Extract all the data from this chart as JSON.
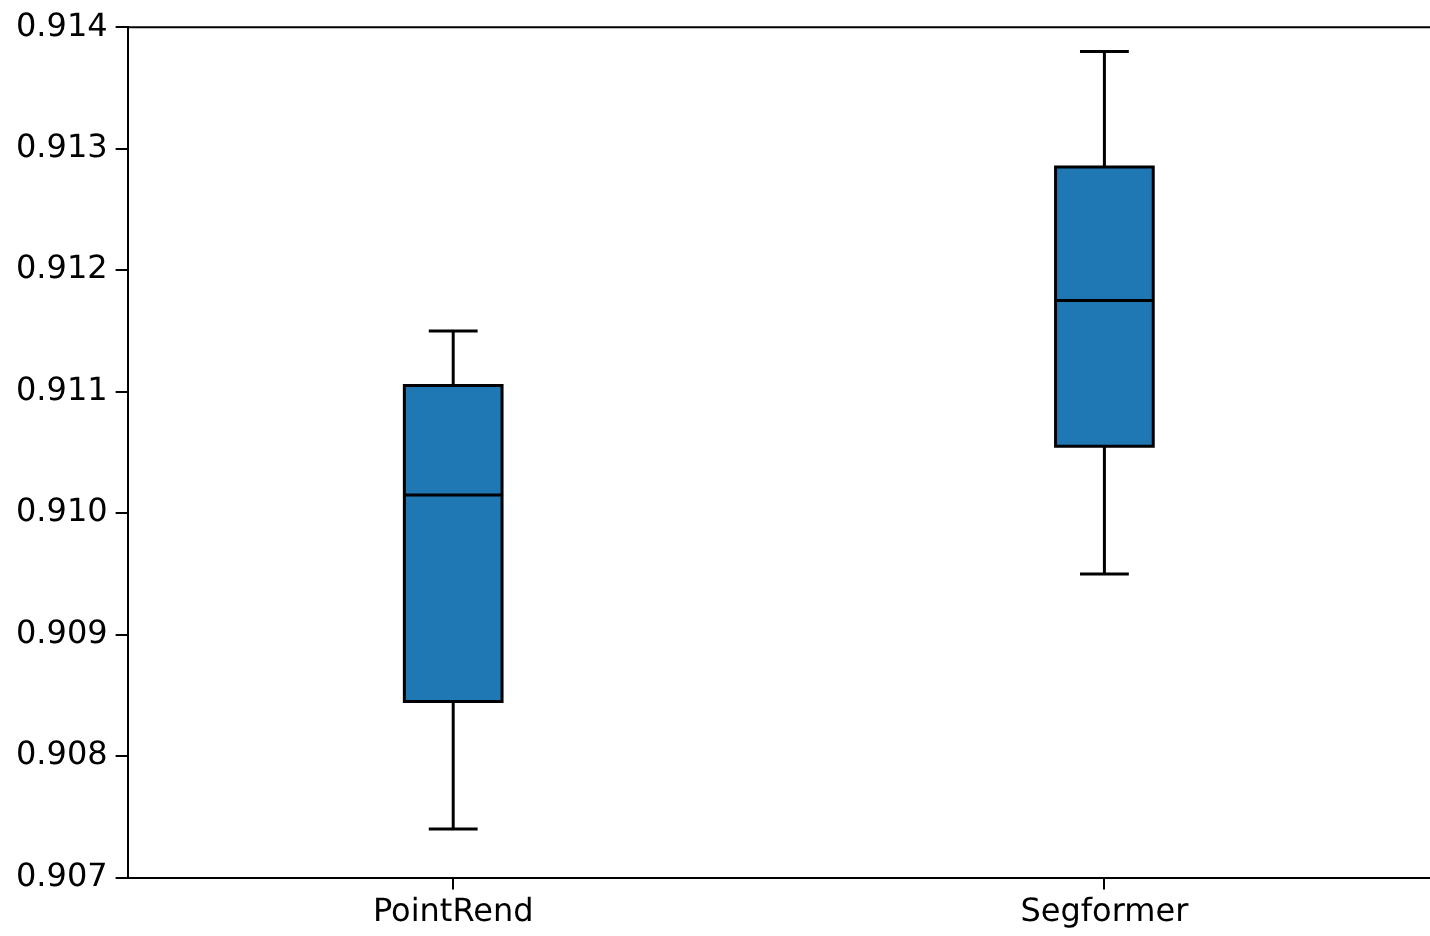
{
  "chart_data": {
    "type": "box",
    "categories": [
      "PointRend",
      "Segformer"
    ],
    "color": "#1f77b4",
    "boxes": [
      {
        "low": 0.9074,
        "q1": 0.90845,
        "median": 0.91015,
        "q3": 0.91105,
        "high": 0.9115
      },
      {
        "low": 0.9095,
        "q1": 0.91055,
        "median": 0.91175,
        "q3": 0.91285,
        "high": 0.9138
      }
    ],
    "ylim": [
      0.907,
      0.914
    ],
    "yticks": [
      0.907,
      0.908,
      0.909,
      {
        "value": 0.91,
        "label": "0.910"
      },
      0.911,
      0.912,
      0.913,
      0.914
    ],
    "grid": false,
    "legend": false
  }
}
